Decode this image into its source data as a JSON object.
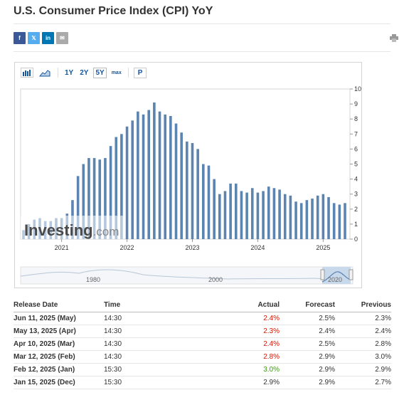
{
  "page": {
    "title": "U.S. Consumer Price Index (CPI) YoY"
  },
  "share": {
    "facebook_icon": "f",
    "twitter_icon": "𝕏",
    "linkedin_icon": "in",
    "email_icon": "✉"
  },
  "colors": {
    "bar": "#5b84b1",
    "actual_above": "#d91400",
    "actual_below": "#3a9a0d",
    "link": "#1256a0"
  },
  "toolbar": {
    "ranges": [
      "1Y",
      "2Y",
      "5Y",
      "max"
    ],
    "active_range": "5Y",
    "p_label": "P"
  },
  "chart_data": {
    "type": "bar",
    "watermark": "Investing.com",
    "x_tick_labels": [
      "2021",
      "2022",
      "2023",
      "2024",
      "2025"
    ],
    "y_ticks": [
      0,
      1,
      2,
      3,
      4,
      5,
      6,
      7,
      8,
      9,
      10
    ],
    "ylim": [
      0,
      10
    ],
    "navigator_labels": [
      "1980",
      "2000",
      "2020"
    ],
    "x": [
      "2020-06",
      "2020-07",
      "2020-08",
      "2020-09",
      "2020-10",
      "2020-11",
      "2020-12",
      "2021-01",
      "2021-02",
      "2021-03",
      "2021-04",
      "2021-05",
      "2021-06",
      "2021-07",
      "2021-08",
      "2021-09",
      "2021-10",
      "2021-11",
      "2021-12",
      "2022-01",
      "2022-02",
      "2022-03",
      "2022-04",
      "2022-05",
      "2022-06",
      "2022-07",
      "2022-08",
      "2022-09",
      "2022-10",
      "2022-11",
      "2022-12",
      "2023-01",
      "2023-02",
      "2023-03",
      "2023-04",
      "2023-05",
      "2023-06",
      "2023-07",
      "2023-08",
      "2023-09",
      "2023-10",
      "2023-11",
      "2023-12",
      "2024-01",
      "2024-02",
      "2024-03",
      "2024-04",
      "2024-05",
      "2024-06",
      "2024-07",
      "2024-08",
      "2024-09",
      "2024-10",
      "2024-11",
      "2024-12",
      "2025-01",
      "2025-02",
      "2025-03",
      "2025-04",
      "2025-05"
    ],
    "values": [
      0.6,
      1.0,
      1.3,
      1.4,
      1.2,
      1.2,
      1.4,
      1.4,
      1.7,
      2.6,
      4.2,
      5.0,
      5.4,
      5.4,
      5.3,
      5.4,
      6.2,
      6.8,
      7.0,
      7.5,
      7.9,
      8.5,
      8.3,
      8.6,
      9.1,
      8.5,
      8.3,
      8.2,
      7.7,
      7.1,
      6.5,
      6.4,
      6.0,
      5.0,
      4.9,
      4.0,
      3.0,
      3.2,
      3.7,
      3.7,
      3.2,
      3.1,
      3.4,
      3.1,
      3.2,
      3.5,
      3.4,
      3.3,
      3.0,
      2.9,
      2.5,
      2.4,
      2.6,
      2.7,
      2.9,
      3.0,
      2.8,
      2.4,
      2.3,
      2.4
    ]
  },
  "table": {
    "headers": {
      "date": "Release Date",
      "time": "Time",
      "actual": "Actual",
      "forecast": "Forecast",
      "previous": "Previous"
    },
    "rows": [
      {
        "date": "Jun 11, 2025 (May)",
        "time": "14:30",
        "actual": "2.4%",
        "actual_color": "red",
        "forecast": "2.5%",
        "previous": "2.3%"
      },
      {
        "date": "May 13, 2025 (Apr)",
        "time": "14:30",
        "actual": "2.3%",
        "actual_color": "red",
        "forecast": "2.4%",
        "previous": "2.4%"
      },
      {
        "date": "Apr 10, 2025 (Mar)",
        "time": "14:30",
        "actual": "2.4%",
        "actual_color": "red",
        "forecast": "2.5%",
        "previous": "2.8%"
      },
      {
        "date": "Mar 12, 2025 (Feb)",
        "time": "14:30",
        "actual": "2.8%",
        "actual_color": "red",
        "forecast": "2.9%",
        "previous": "3.0%"
      },
      {
        "date": "Feb 12, 2025 (Jan)",
        "time": "15:30",
        "actual": "3.0%",
        "actual_color": "green",
        "forecast": "2.9%",
        "previous": "2.9%"
      },
      {
        "date": "Jan 15, 2025 (Dec)",
        "time": "15:30",
        "actual": "2.9%",
        "actual_color": "black",
        "forecast": "2.9%",
        "previous": "2.7%"
      }
    ]
  }
}
